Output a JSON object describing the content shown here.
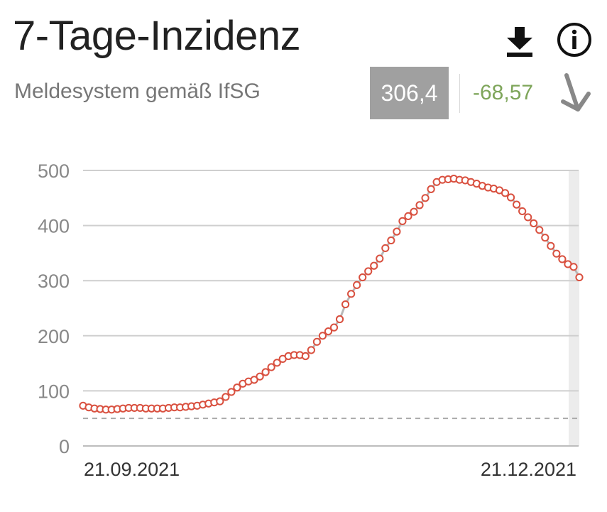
{
  "header": {
    "title": "7-Tage-Inzidenz",
    "subtitle": "Meldesystem gemäß IfSG",
    "current_value": "306,4",
    "change_value": "-68,57",
    "icons": {
      "download": "download-icon",
      "info": "info-icon",
      "trend": "arrow-down-right-icon"
    }
  },
  "colors": {
    "line": "#b8b8b8",
    "marker": "#d9503f",
    "change_positive_trend": "#7ea55a",
    "value_box": "#a0a0a0",
    "highlight_band": "#ececec"
  },
  "chart_data": {
    "type": "line",
    "title": "",
    "xlabel": "",
    "ylabel": "",
    "ylim": [
      0,
      500
    ],
    "yticks": [
      0,
      100,
      200,
      300,
      400,
      500
    ],
    "yticklabels": [
      "0",
      "100",
      "200",
      "300",
      "400",
      "500"
    ],
    "xticklabels": [
      "21.09.2021",
      "21.12.2021"
    ],
    "grid": true,
    "reference_line": 50,
    "highlight_last_point": true,
    "x_start": "2021-09-21",
    "x_end": "2021-12-22",
    "series": [
      {
        "values": [
          73,
          70,
          68,
          67,
          66,
          66,
          67,
          68,
          69,
          69,
          69,
          68,
          68,
          68,
          68,
          69,
          70,
          70,
          71,
          72,
          73,
          75,
          77,
          79,
          81,
          89,
          98,
          106,
          113,
          117,
          120,
          126,
          134,
          143,
          151,
          158,
          163,
          165,
          165,
          163,
          174,
          189,
          200,
          208,
          215,
          230,
          257,
          276,
          292,
          306,
          317,
          327,
          340,
          359,
          373,
          389,
          408,
          417,
          425,
          437,
          450,
          466,
          479,
          483,
          484,
          485,
          483,
          482,
          479,
          476,
          472,
          469,
          467,
          464,
          459,
          451,
          438,
          426,
          415,
          404,
          392,
          378,
          363,
          349,
          339,
          330,
          325,
          306
        ]
      }
    ]
  }
}
